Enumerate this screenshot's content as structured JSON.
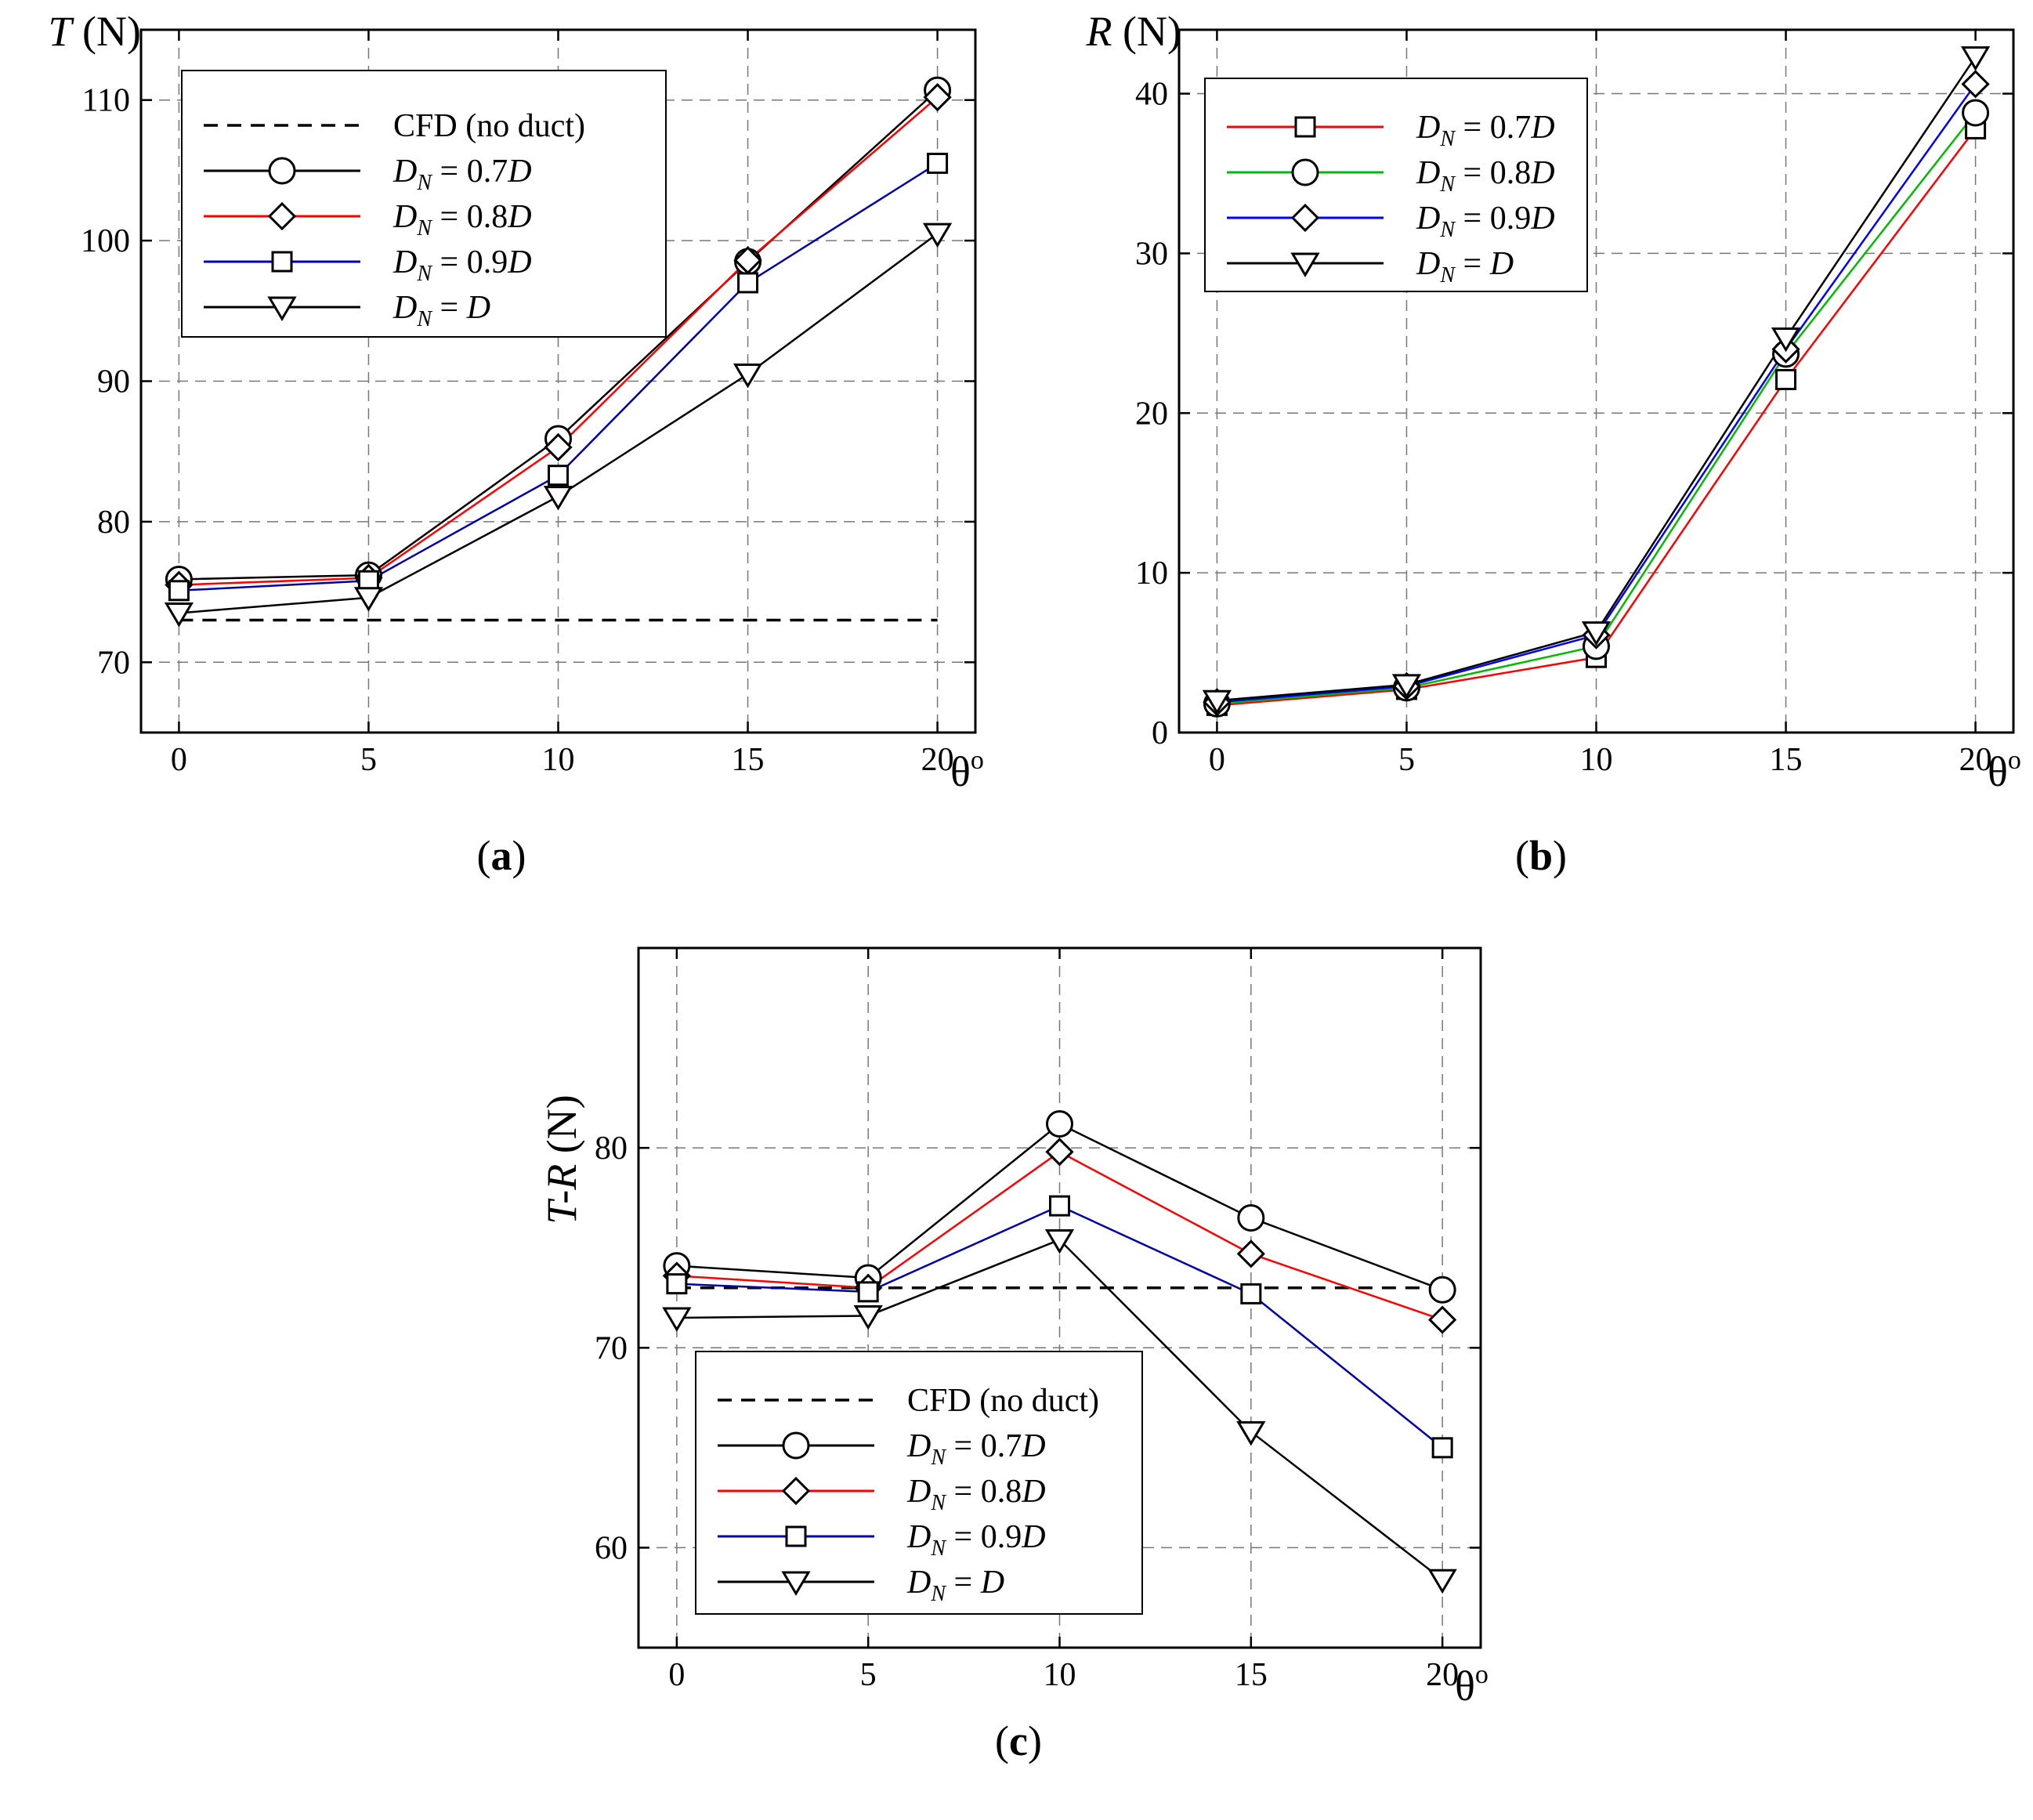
{
  "chart_data": [
    {
      "panel": "(a)",
      "panel_letter": "a",
      "type": "line",
      "ylabel": "T (N)",
      "ylabel_italic": "T",
      "ylabel_unit": " (N)",
      "xlabel": "θo",
      "xlabel_main": "θ",
      "xlabel_sup": "o",
      "x": [
        0,
        5,
        10,
        15,
        20
      ],
      "xticks": [
        0,
        5,
        10,
        15,
        20
      ],
      "yticks": [
        70,
        80,
        90,
        100,
        110
      ],
      "xlim": [
        -1,
        21
      ],
      "ylim": [
        65,
        115
      ],
      "grid": true,
      "legend_position": "top-left",
      "series": [
        {
          "name": "CFD (no duct)",
          "label_main": "CFD (no duct)",
          "color": "#000000",
          "dashed": true,
          "marker": "none",
          "values": [
            73,
            73,
            73,
            73,
            73
          ]
        },
        {
          "name": "DN = 0.7D",
          "label_main": "D",
          "label_sub": "N",
          "label_rest": " = 0.7",
          "label_end": "D",
          "color": "#000000",
          "marker": "circle",
          "values": [
            75.9,
            76.2,
            85.9,
            98.5,
            110.7
          ]
        },
        {
          "name": "DN = 0.8D",
          "label_main": "D",
          "label_sub": "N",
          "label_rest": " = 0.8",
          "label_end": "D",
          "color": "#ff0000",
          "marker": "diamond",
          "values": [
            75.5,
            76.0,
            85.3,
            98.6,
            110.2
          ]
        },
        {
          "name": "DN = 0.9D",
          "label_main": "D",
          "label_sub": "N",
          "label_rest": " = 0.9",
          "label_end": "D",
          "color": "#0000aa",
          "marker": "square",
          "values": [
            75.1,
            75.8,
            83.3,
            97.0,
            105.5
          ]
        },
        {
          "name": "DN = D",
          "label_main": "D",
          "label_sub": "N",
          "label_rest": " = ",
          "label_end": "D",
          "color": "#000000",
          "marker": "triangle-down",
          "values": [
            73.5,
            74.6,
            81.8,
            90.5,
            100.5
          ]
        }
      ]
    },
    {
      "panel": "(b)",
      "panel_letter": "b",
      "type": "line",
      "ylabel": "R (N)",
      "ylabel_italic": "R",
      "ylabel_unit": " (N)",
      "xlabel": "θo",
      "xlabel_main": "θ",
      "xlabel_sup": "o",
      "x": [
        0,
        5,
        10,
        15,
        20
      ],
      "xticks": [
        0,
        5,
        10,
        15,
        20
      ],
      "yticks": [
        0,
        10,
        20,
        30,
        40
      ],
      "xlim": [
        -1,
        21
      ],
      "ylim": [
        0,
        44
      ],
      "grid": true,
      "legend_position": "top-left",
      "series": [
        {
          "name": "DN = 0.7D",
          "label_main": "D",
          "label_sub": "N",
          "label_rest": " = 0.7",
          "label_end": "D",
          "color": "#ff0000",
          "marker": "square",
          "values": [
            1.7,
            2.7,
            4.7,
            22.1,
            37.8
          ]
        },
        {
          "name": "DN = 0.8D",
          "label_main": "D",
          "label_sub": "N",
          "label_rest": " = 0.8",
          "label_end": "D",
          "color": "#00bb00",
          "marker": "circle",
          "values": [
            1.8,
            2.8,
            5.4,
            23.7,
            38.8
          ]
        },
        {
          "name": "DN = 0.9D",
          "label_main": "D",
          "label_sub": "N",
          "label_rest": " = 0.9",
          "label_end": "D",
          "color": "#0000ff",
          "marker": "diamond",
          "values": [
            1.9,
            2.9,
            6.1,
            24.0,
            40.6
          ]
        },
        {
          "name": "DN = D",
          "label_main": "D",
          "label_sub": "N",
          "label_rest": " = ",
          "label_end": "D",
          "color": "#000000",
          "marker": "triangle-down",
          "values": [
            2.0,
            3.0,
            6.3,
            24.7,
            42.3
          ]
        }
      ]
    },
    {
      "panel": "(c)",
      "panel_letter": "c",
      "type": "line",
      "ylabel": "T-R (N)",
      "ylabel_italic": "T-R",
      "ylabel_unit": " (N)",
      "xlabel": "θo",
      "xlabel_main": "θ",
      "xlabel_sup": "o",
      "x": [
        0,
        5,
        10,
        15,
        20
      ],
      "xticks": [
        0,
        5,
        10,
        15,
        20
      ],
      "yticks": [
        60,
        70,
        80
      ],
      "xlim": [
        -1,
        21
      ],
      "ylim": [
        55,
        90
      ],
      "grid": true,
      "legend_position": "bottom-left",
      "series": [
        {
          "name": "CFD (no duct)",
          "label_main": "CFD (no duct)",
          "color": "#000000",
          "dashed": true,
          "marker": "none",
          "values": [
            73,
            73,
            73,
            73,
            73
          ]
        },
        {
          "name": "DN = 0.7D",
          "label_main": "D",
          "label_sub": "N",
          "label_rest": " = 0.7",
          "label_end": "D",
          "color": "#000000",
          "marker": "circle",
          "values": [
            74.1,
            73.5,
            81.2,
            76.5,
            72.9
          ]
        },
        {
          "name": "DN = 0.8D",
          "label_main": "D",
          "label_sub": "N",
          "label_rest": " = 0.8",
          "label_end": "D",
          "color": "#ff0000",
          "marker": "diamond",
          "values": [
            73.6,
            73.0,
            79.8,
            74.7,
            71.4
          ]
        },
        {
          "name": "DN = 0.9D",
          "label_main": "D",
          "label_sub": "N",
          "label_rest": " = 0.9",
          "label_end": "D",
          "color": "#0000aa",
          "marker": "square",
          "values": [
            73.2,
            72.8,
            77.1,
            72.7,
            65.0
          ]
        },
        {
          "name": "DN = D",
          "label_main": "D",
          "label_sub": "N",
          "label_rest": " = ",
          "label_end": "D",
          "color": "#000000",
          "marker": "triangle-down",
          "values": [
            71.5,
            71.6,
            75.4,
            65.8,
            58.4
          ]
        }
      ]
    }
  ]
}
